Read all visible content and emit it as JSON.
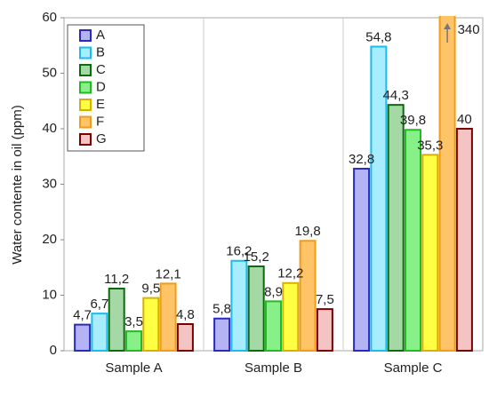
{
  "chart_data": {
    "type": "bar",
    "ylabel": "Water contente in oil (ppm)",
    "categories": [
      "Sample A",
      "Sample B",
      "Sample C"
    ],
    "series": [
      {
        "name": "A",
        "color": "#b4b4f4",
        "edgecolor": "#2a2ac0",
        "values": [
          4.7,
          5.8,
          32.8
        ],
        "value_labels": [
          "4,7",
          "5,8",
          "32,8"
        ]
      },
      {
        "name": "B",
        "color": "#a8ecff",
        "edgecolor": "#18bcee",
        "values": [
          6.7,
          16.2,
          54.8
        ],
        "value_labels": [
          "6,7",
          "16,2",
          "54,8"
        ]
      },
      {
        "name": "C",
        "color": "#a4d8a4",
        "edgecolor": "#0e6a0e",
        "values": [
          11.2,
          15.2,
          44.3
        ],
        "value_labels": [
          "11,2",
          "15,2",
          "44,3"
        ]
      },
      {
        "name": "D",
        "color": "#88f088",
        "edgecolor": "#22bb22",
        "values": [
          3.5,
          8.9,
          39.8
        ],
        "value_labels": [
          "3,5",
          "8,9",
          "39,8"
        ]
      },
      {
        "name": "E",
        "color": "#ffff44",
        "edgecolor": "#d8b000",
        "values": [
          9.5,
          12.2,
          35.3
        ],
        "value_labels": [
          "9,5",
          "12,2",
          "35,3"
        ]
      },
      {
        "name": "F",
        "color": "#ffc468",
        "edgecolor": "#f09c18",
        "values": [
          12.1,
          19.8,
          340
        ],
        "value_labels": [
          "12,1",
          "19,8",
          "340"
        ]
      },
      {
        "name": "G",
        "color": "#f4c4c4",
        "edgecolor": "#7a0000",
        "values": [
          4.8,
          7.5,
          40
        ],
        "value_labels": [
          "4,8",
          "7,5",
          "40"
        ]
      }
    ],
    "ylim": [
      0,
      60
    ],
    "yticks": [
      0,
      10,
      20,
      30,
      40,
      50,
      60
    ],
    "legend": "upper left"
  }
}
